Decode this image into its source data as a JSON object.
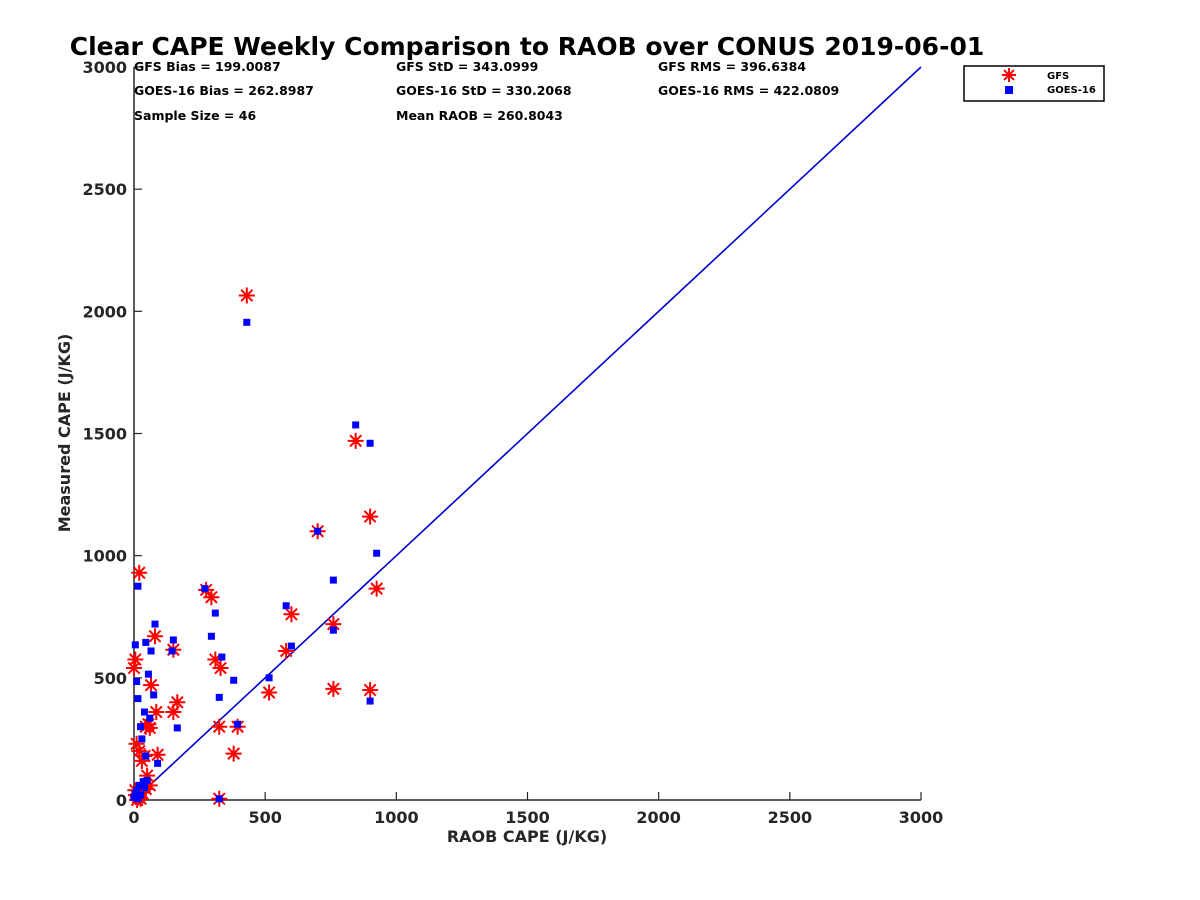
{
  "chart_data": {
    "type": "scatter",
    "title": "Clear CAPE Weekly Comparison to RAOB over CONUS 2019-06-01",
    "xlabel": "RAOB CAPE (J/KG)",
    "ylabel": "Measured CAPE (J/KG)",
    "xlim": [
      0,
      3000
    ],
    "ylim": [
      0,
      3000
    ],
    "xticks": [
      "0",
      "500",
      "1000",
      "1500",
      "2000",
      "2500",
      "3000"
    ],
    "yticks": [
      "0",
      "500",
      "1000",
      "1500",
      "2000",
      "2500",
      "3000"
    ],
    "grid": false,
    "legend_position": "top-right (outside plot)",
    "stats": [
      "GFS Bias = 199.0087",
      "GFS StD = 343.0999",
      "GFS RMS = 396.6384",
      "GOES-16 Bias = 262.8987",
      "GOES-16 StD = 330.2068",
      "GOES-16 RMS = 422.0809",
      "Sample Size = 46",
      "Mean RAOB = 260.8043"
    ],
    "reference_line": {
      "x": [
        0,
        3000
      ],
      "y": [
        0,
        3000
      ],
      "color": "#0000cc"
    },
    "series": [
      {
        "name": "GFS",
        "marker": "asterisk",
        "color": "#ff0000",
        "x": [
          430,
          845,
          700,
          900,
          925,
          600,
          580,
          760,
          760,
          900,
          515,
          20,
          275,
          295,
          310,
          330,
          150,
          80,
          165,
          150,
          85,
          65,
          55,
          45,
          60,
          90,
          380,
          395,
          325,
          325,
          5,
          0,
          10,
          20,
          30,
          40,
          50,
          60,
          5,
          15,
          25,
          8,
          12,
          18,
          45,
          30
        ],
        "y": [
          2065,
          1470,
          1100,
          1160,
          865,
          760,
          610,
          720,
          455,
          450,
          440,
          930,
          860,
          830,
          575,
          540,
          615,
          670,
          400,
          360,
          360,
          470,
          310,
          300,
          295,
          185,
          190,
          300,
          300,
          5,
          575,
          540,
          230,
          200,
          160,
          180,
          100,
          60,
          40,
          10,
          5,
          20,
          0,
          15,
          45,
          30
        ]
      },
      {
        "name": "GOES-16",
        "marker": "square",
        "color": "#0000ff",
        "x": [
          430,
          845,
          900,
          700,
          925,
          760,
          580,
          600,
          760,
          900,
          515,
          15,
          270,
          310,
          295,
          335,
          380,
          325,
          395,
          150,
          145,
          80,
          75,
          45,
          55,
          65,
          40,
          60,
          5,
          10,
          15,
          25,
          45,
          90,
          30,
          165,
          35,
          20,
          10,
          5,
          0,
          15,
          25,
          40,
          50,
          325
        ],
        "y": [
          1955,
          1535,
          1460,
          1100,
          1010,
          900,
          795,
          630,
          695,
          405,
          500,
          875,
          865,
          765,
          670,
          585,
          490,
          420,
          310,
          655,
          610,
          720,
          430,
          645,
          515,
          610,
          360,
          335,
          635,
          485,
          415,
          300,
          180,
          150,
          250,
          295,
          75,
          60,
          40,
          25,
          10,
          5,
          20,
          50,
          80,
          5
        ]
      }
    ]
  }
}
